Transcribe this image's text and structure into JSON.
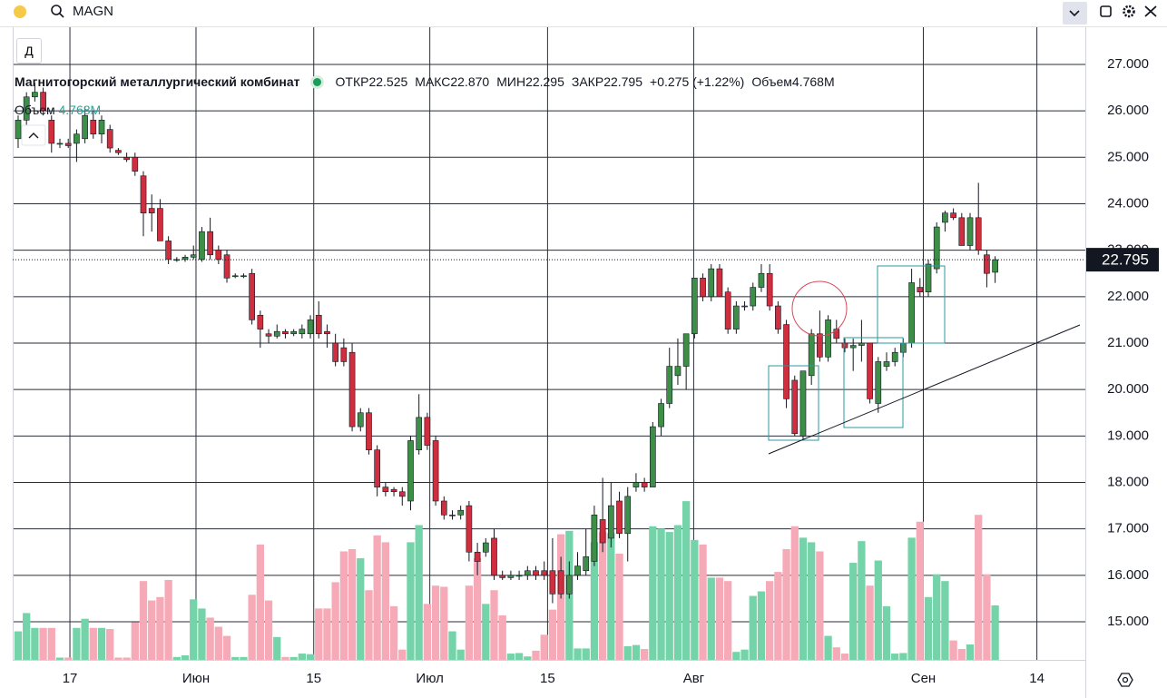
{
  "toolbar": {
    "symbol": "MAGN",
    "interval": "Д"
  },
  "chart_data": {
    "type": "candlestick",
    "title": "Магнитогорский металлургический комбинат",
    "ohlc_legend": [
      {
        "label": "ОТКР",
        "value": "22.525"
      },
      {
        "label": "МАКС",
        "value": "22.870"
      },
      {
        "label": "МИН",
        "value": "22.295"
      },
      {
        "label": "ЗАКР",
        "value": "22.795"
      }
    ],
    "change": "+0.275 (+1.22%)",
    "volume_legend": {
      "label": "Объем",
      "value": "4.768M"
    },
    "open": [
      25.4,
      25.8,
      26.3,
      26.4,
      25.8,
      25.3,
      25.3,
      25.3,
      25.4,
      25.8,
      25.5,
      25.6,
      25.15,
      25.0,
      25.0,
      24.6,
      23.9,
      23.9,
      23.2,
      22.8,
      22.8,
      22.85,
      22.8,
      23.4,
      23.0,
      22.9,
      22.45,
      22.45,
      22.5,
      21.6,
      21.2,
      21.15,
      21.25,
      21.2,
      21.2,
      21.2,
      21.6,
      21.25,
      21.0,
      20.9,
      20.8,
      19.2,
      19.5,
      18.7,
      17.9,
      17.85,
      17.8,
      17.6,
      18.7,
      19.4,
      18.9,
      17.6,
      17.3,
      17.3,
      17.5,
      16.5,
      16.5,
      16.8,
      16.0,
      15.95,
      16.0,
      16.0,
      16.1,
      16.1,
      16.1,
      16.1,
      15.6,
      16.0,
      16.1,
      16.3,
      17.2,
      16.8,
      17.6,
      16.9,
      17.9,
      18.0,
      17.9,
      19.2,
      19.7,
      20.3,
      20.5,
      21.2,
      22.4,
      22.0,
      22.6,
      22.1,
      21.3,
      21.8,
      21.8,
      22.2,
      22.5,
      21.8,
      21.4,
      20.2,
      19.0,
      20.3,
      21.2,
      20.7,
      21.3,
      21.0,
      20.9,
      20.95,
      21.0,
      19.7,
      20.5,
      20.6,
      20.8,
      21.0,
      22.2,
      22.1,
      22.6,
      23.6,
      23.8,
      23.7,
      23.1,
      23.7,
      22.9,
      22.525
    ],
    "high": [
      25.9,
      26.4,
      26.6,
      26.5,
      25.9,
      25.4,
      25.4,
      25.6,
      26.1,
      26.0,
      25.9,
      25.7,
      25.2,
      25.1,
      25.1,
      24.7,
      24.2,
      24.1,
      23.3,
      22.85,
      22.9,
      23.1,
      23.5,
      23.7,
      23.1,
      23.0,
      22.5,
      22.5,
      22.6,
      21.7,
      21.3,
      21.4,
      21.3,
      21.3,
      21.4,
      21.6,
      21.9,
      21.4,
      21.2,
      21.1,
      21.0,
      19.6,
      19.6,
      18.8,
      18.0,
      17.9,
      17.9,
      19.0,
      19.9,
      19.5,
      19.0,
      17.7,
      17.4,
      17.5,
      17.6,
      16.7,
      16.8,
      17.0,
      16.1,
      16.1,
      16.1,
      16.2,
      16.2,
      16.3,
      16.8,
      16.4,
      16.3,
      16.5,
      17.0,
      17.5,
      18.1,
      18.0,
      17.8,
      17.9,
      18.2,
      18.1,
      19.3,
      19.8,
      20.9,
      21.1,
      21.2,
      22.4,
      22.5,
      22.7,
      22.7,
      22.2,
      21.9,
      21.9,
      22.3,
      22.7,
      22.7,
      21.9,
      21.5,
      20.3,
      20.4,
      21.3,
      21.7,
      21.6,
      21.5,
      21.1,
      21.1,
      21.5,
      21.0,
      20.7,
      20.8,
      20.9,
      21.1,
      22.6,
      22.4,
      22.8,
      23.6,
      23.85,
      23.9,
      23.8,
      23.8,
      24.45,
      23.0,
      22.87
    ],
    "low": [
      25.2,
      25.7,
      26.2,
      25.9,
      25.1,
      25.2,
      25.2,
      24.9,
      25.3,
      25.4,
      25.3,
      25.1,
      25.05,
      24.9,
      24.6,
      23.3,
      23.4,
      23.2,
      22.7,
      22.75,
      22.75,
      22.8,
      22.75,
      22.8,
      22.7,
      22.3,
      22.4,
      22.4,
      21.4,
      20.9,
      21.0,
      21.1,
      21.1,
      21.15,
      21.1,
      21.1,
      21.1,
      20.9,
      20.5,
      20.5,
      19.1,
      19.1,
      18.6,
      17.7,
      17.7,
      17.7,
      17.5,
      17.4,
      18.6,
      18.7,
      17.5,
      17.2,
      17.2,
      17.2,
      16.3,
      16.0,
      16.4,
      15.9,
      15.9,
      15.9,
      15.9,
      15.9,
      15.9,
      15.9,
      15.4,
      15.5,
      15.5,
      15.9,
      16.0,
      16.2,
      16.5,
      16.6,
      16.8,
      16.3,
      17.8,
      17.8,
      17.9,
      19.0,
      19.6,
      20.1,
      20.0,
      21.1,
      21.9,
      21.9,
      22.0,
      21.2,
      21.2,
      21.7,
      21.7,
      22.1,
      21.7,
      21.2,
      19.6,
      19.0,
      18.9,
      20.1,
      20.6,
      20.6,
      21.0,
      20.8,
      20.4,
      20.6,
      19.7,
      19.5,
      20.4,
      20.5,
      20.7,
      20.9,
      22.0,
      22.0,
      22.5,
      23.4,
      23.65,
      23.1,
      23.0,
      22.9,
      22.2,
      22.295
    ],
    "close": [
      25.8,
      26.3,
      26.4,
      26.0,
      25.3,
      25.3,
      25.25,
      25.5,
      25.9,
      25.5,
      25.8,
      25.2,
      25.1,
      24.95,
      24.7,
      23.8,
      23.8,
      23.2,
      22.8,
      22.8,
      22.85,
      22.9,
      23.4,
      22.9,
      22.8,
      22.4,
      22.45,
      22.45,
      21.5,
      21.3,
      21.15,
      21.25,
      21.2,
      21.25,
      21.3,
      21.5,
      21.2,
      21.2,
      20.6,
      20.6,
      19.2,
      19.5,
      18.7,
      17.9,
      17.8,
      17.8,
      17.7,
      18.9,
      19.4,
      18.8,
      17.6,
      17.3,
      17.3,
      17.4,
      16.5,
      16.3,
      16.7,
      16.0,
      15.95,
      16.0,
      16.0,
      16.1,
      16.0,
      16.0,
      15.6,
      15.6,
      16.0,
      16.2,
      16.4,
      17.3,
      16.7,
      17.5,
      16.9,
      17.7,
      18.0,
      17.9,
      19.2,
      19.7,
      20.5,
      20.5,
      21.2,
      22.4,
      22.0,
      22.6,
      22.0,
      21.3,
      21.8,
      21.8,
      22.2,
      22.5,
      21.8,
      21.3,
      19.8,
      19.05,
      20.4,
      21.2,
      20.7,
      21.5,
      21.1,
      20.9,
      20.95,
      21.0,
      19.8,
      20.6,
      20.6,
      20.8,
      21.0,
      22.3,
      22.1,
      22.7,
      23.5,
      23.8,
      23.7,
      23.1,
      23.7,
      23.0,
      22.5,
      22.795
    ],
    "volume": [
      2.5,
      4.1,
      2.8,
      2.8,
      2.8,
      0.2,
      0.2,
      2.8,
      3.6,
      2.8,
      2.8,
      2.7,
      0.2,
      0.2,
      3.3,
      6.9,
      5.2,
      5.5,
      7.0,
      0.25,
      0.4,
      5.3,
      4.5,
      3.7,
      2.9,
      2.1,
      0.25,
      0.25,
      5.7,
      10.1,
      5.2,
      2.0,
      0.25,
      0.25,
      0.55,
      0.5,
      4.5,
      4.5,
      6.8,
      9.5,
      9.7,
      8.9,
      6.1,
      10.9,
      10.3,
      4.7,
      0.9,
      10.3,
      11.8,
      4.9,
      6.5,
      6.4,
      2.5,
      0.9,
      6.5,
      8.9,
      4.9,
      6.1,
      3.9,
      0.55,
      0.6,
      0.3,
      0.8,
      2.2,
      4.4,
      11.0,
      11.3,
      1.0,
      1.0,
      10.3,
      11.2,
      11.1,
      9.3,
      1.2,
      1.3,
      0.95,
      11.7,
      11.5,
      11.2,
      11.8,
      13.9,
      10.5,
      10.1,
      7.2,
      7.2,
      6.9,
      0.7,
      0.9,
      5.6,
      6.0,
      6.9,
      7.7,
      9.7,
      11.7,
      10.7,
      10.3,
      9.5,
      2.1,
      1.1,
      0.55,
      8.5,
      10.4,
      6.5,
      8.7,
      4.7,
      0.55,
      0.6,
      10.7,
      12.1,
      5.5,
      7.5,
      6.9,
      1.7,
      0.95,
      1.35,
      12.7,
      7.5,
      4.768
    ],
    "volume_ylim": [
      0,
      55.4
    ],
    "up_color": "#3d8f48",
    "down_color": "#cf2e3e",
    "volume_up_color": "#74d3a8",
    "volume_down_color": "#f6a9b6",
    "xlim": [
      -0.65,
      127.8
    ],
    "xticks": [
      {
        "value": 6.2,
        "label": "17"
      },
      {
        "value": 21.3,
        "label": "Июн"
      },
      {
        "value": 35.4,
        "label": "15"
      },
      {
        "value": 49.3,
        "label": "Июл"
      },
      {
        "value": 63.4,
        "label": "15"
      },
      {
        "value": 80.9,
        "label": "Авг"
      },
      {
        "value": 108.4,
        "label": "Сен"
      },
      {
        "value": 122.0,
        "label": "14"
      }
    ],
    "ylim": [
      14.18,
      27.8
    ],
    "yticks": [
      {
        "value": 15,
        "label": "15.000"
      },
      {
        "value": 16,
        "label": "16.000"
      },
      {
        "value": 17,
        "label": "17.000"
      },
      {
        "value": 18,
        "label": "18.000"
      },
      {
        "value": 19,
        "label": "19.000"
      },
      {
        "value": 20,
        "label": "20.000"
      },
      {
        "value": 21,
        "label": "21.000"
      },
      {
        "value": 22,
        "label": "22.000"
      },
      {
        "value": 23,
        "label": "23.000"
      },
      {
        "value": 24,
        "label": "24.000"
      },
      {
        "value": 25,
        "label": "25.000"
      },
      {
        "value": 26,
        "label": "26.000"
      },
      {
        "value": 27,
        "label": "27.000"
      }
    ],
    "last_price": 22.795,
    "grid": true
  }
}
